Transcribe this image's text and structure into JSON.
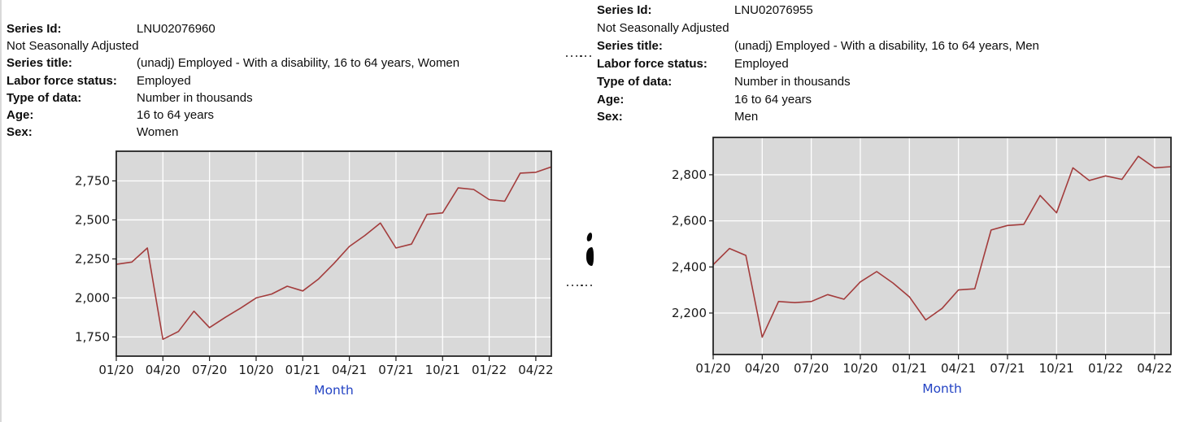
{
  "panels": [
    {
      "meta": {
        "rows": [
          {
            "label": "Series Id:",
            "value": "LNU02076960"
          },
          {
            "label": "",
            "value": "Not Seasonally Adjusted"
          },
          {
            "label": "Series title:",
            "value": "(unadj) Employed - With a disability, 16 to 64 years, Women"
          },
          {
            "label": "Labor force status:",
            "value": "Employed"
          },
          {
            "label": "Type of data:",
            "value": "Number in thousands"
          },
          {
            "label": "Age:",
            "value": "16 to 64 years"
          },
          {
            "label": "Sex:",
            "value": "Women"
          }
        ]
      }
    },
    {
      "meta": {
        "rows": [
          {
            "label": "Series Id:",
            "value": "LNU02076955"
          },
          {
            "label": "",
            "value": "Not Seasonally Adjusted"
          },
          {
            "label": "Series title:",
            "value": "(unadj) Employed - With a disability, 16 to 64 years, Men"
          },
          {
            "label": "Labor force status:",
            "value": "Employed"
          },
          {
            "label": "Type of data:",
            "value": "Number in thousands"
          },
          {
            "label": "Age:",
            "value": "16 to 64 years"
          },
          {
            "label": "Sex:",
            "value": "Men"
          }
        ]
      }
    }
  ],
  "chart_data": [
    {
      "type": "line",
      "title": "(unadj) Employed - With a disability, 16 to 64 years, Women",
      "x": [
        "01/20",
        "02/20",
        "03/20",
        "04/20",
        "05/20",
        "06/20",
        "07/20",
        "08/20",
        "09/20",
        "10/20",
        "11/20",
        "12/20",
        "01/21",
        "02/21",
        "03/21",
        "04/21",
        "05/21",
        "06/21",
        "07/21",
        "08/21",
        "09/21",
        "10/21",
        "11/21",
        "12/21",
        "01/22",
        "02/22",
        "03/22",
        "04/22",
        "05/22"
      ],
      "values": [
        2215,
        2230,
        2320,
        1735,
        1785,
        1915,
        1810,
        1875,
        1935,
        2000,
        2025,
        2075,
        2045,
        2120,
        2220,
        2330,
        2400,
        2480,
        2320,
        2345,
        2535,
        2545,
        2705,
        2695,
        2630,
        2620,
        2800,
        2805,
        2840
      ],
      "xlabel": "Month",
      "ylabel": "",
      "yticks": [
        1750,
        2000,
        2250,
        2500,
        2750
      ],
      "ytick_labels": [
        "1,750",
        "2,000",
        "2,250",
        "2,500",
        "2,750"
      ],
      "ylim": [
        1627,
        2940
      ],
      "x_tick_every": 3,
      "grid": true,
      "legend": "none",
      "line_color": "#a33c3c",
      "plot_bg": "#d9d9d9",
      "grid_color": "#ffffff",
      "border_color": "#242424",
      "axis_text_color": "#1a1a1a",
      "xlabel_color": "#2444c4"
    },
    {
      "type": "line",
      "title": "(unadj) Employed - With a disability, 16 to 64 years, Men",
      "x": [
        "01/20",
        "02/20",
        "03/20",
        "04/20",
        "05/20",
        "06/20",
        "07/20",
        "08/20",
        "09/20",
        "10/20",
        "11/20",
        "12/20",
        "01/21",
        "02/21",
        "03/21",
        "04/21",
        "05/21",
        "06/21",
        "07/21",
        "08/21",
        "09/21",
        "10/21",
        "11/21",
        "12/21",
        "01/22",
        "02/22",
        "03/22",
        "04/22",
        "05/22"
      ],
      "values": [
        2410,
        2480,
        2450,
        2095,
        2250,
        2245,
        2250,
        2280,
        2260,
        2335,
        2380,
        2330,
        2270,
        2170,
        2220,
        2300,
        2305,
        2560,
        2580,
        2585,
        2710,
        2635,
        2830,
        2775,
        2795,
        2780,
        2880,
        2830,
        2835
      ],
      "xlabel": "Month",
      "ylabel": "",
      "yticks": [
        2200,
        2400,
        2600,
        2800
      ],
      "ytick_labels": [
        "2,200",
        "2,400",
        "2,600",
        "2,800"
      ],
      "ylim": [
        2020,
        2962
      ],
      "x_tick_every": 3,
      "grid": true,
      "legend": "none",
      "line_color": "#a33c3c",
      "plot_bg": "#d9d9d9",
      "grid_color": "#ffffff",
      "border_color": "#242424",
      "axis_text_color": "#1a1a1a",
      "xlabel_color": "#2444c4"
    }
  ]
}
